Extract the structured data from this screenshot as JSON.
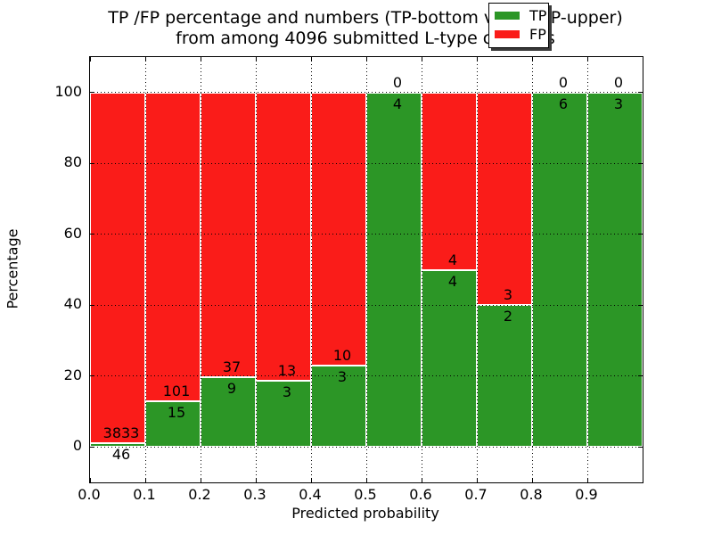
{
  "title": {
    "line1": "TP /FP percentage and numbers (TP-bottom value, FP-upper)",
    "line2": "from among 4096 submitted L-type contacts"
  },
  "axes": {
    "xlabel": "Predicted probability",
    "ylabel": "Percentage",
    "x_tick_labels": [
      "0.0",
      "0.1",
      "0.2",
      "0.3",
      "0.4",
      "0.5",
      "0.6",
      "0.7",
      "0.8",
      "0.9"
    ],
    "y_tick_labels": [
      "0",
      "20",
      "40",
      "60",
      "80",
      "100"
    ],
    "y_tick_values": [
      0,
      20,
      40,
      60,
      80,
      100
    ]
  },
  "legend": {
    "items": [
      {
        "label": "TP",
        "color": "#2c9626"
      },
      {
        "label": "FP",
        "color": "#fa1c19"
      }
    ],
    "position": "upper right",
    "shadow": true
  },
  "colors": {
    "tp": "#2c9626",
    "fp": "#fa1c19",
    "grid": "#000000",
    "bar_edge": "#ffffff",
    "background": "#ffffff"
  },
  "chart_data": {
    "type": "bar",
    "stacked": true,
    "normalized_to_percent": true,
    "title": "TP /FP percentage and numbers (TP-bottom value, FP-upper) from among 4096 submitted L-type contacts",
    "xlabel": "Predicted probability",
    "ylabel": "Percentage",
    "xlim": [
      0.0,
      1.0
    ],
    "ylim_display": [
      -10,
      110
    ],
    "bin_width": 0.1,
    "grid": true,
    "legend_position": "upper right",
    "total_contacts": 4096,
    "categories": [
      "0.0-0.1",
      "0.1-0.2",
      "0.2-0.3",
      "0.3-0.4",
      "0.4-0.5",
      "0.5-0.6",
      "0.6-0.7",
      "0.7-0.8",
      "0.8-0.9",
      "0.9-1.0"
    ],
    "series": [
      {
        "name": "TP",
        "color": "#2c9626",
        "counts": [
          46,
          15,
          9,
          3,
          3,
          4,
          4,
          2,
          6,
          3
        ]
      },
      {
        "name": "FP",
        "color": "#fa1c19",
        "counts": [
          3833,
          101,
          37,
          13,
          10,
          0,
          4,
          3,
          0,
          0
        ]
      }
    ],
    "annotation_note": "TP count printed below the TP/FP boundary, FP count printed above it"
  }
}
